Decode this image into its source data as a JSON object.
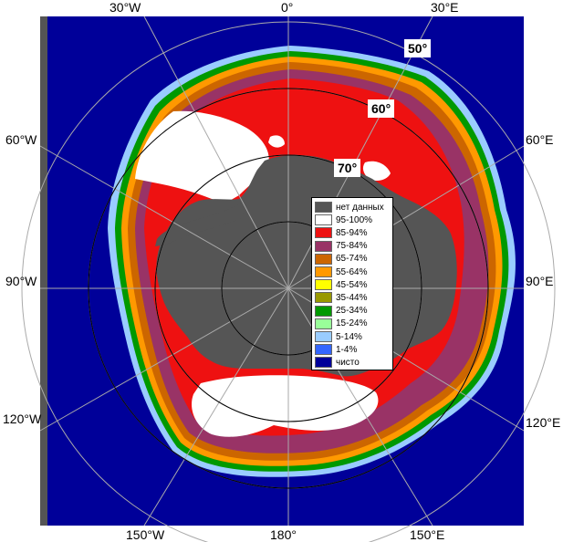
{
  "map": {
    "top_labels": [
      "30°W",
      "0°",
      "30°E"
    ],
    "left_labels": [
      "60°W",
      "90°W",
      "120°W"
    ],
    "right_labels": [
      "60°E",
      "90°E",
      "120°E"
    ],
    "bottom_labels": [
      "150°W",
      "180°",
      "150°E"
    ],
    "lat_labels": [
      "50°",
      "60°",
      "70°"
    ]
  },
  "legend": {
    "items": [
      {
        "label": "нет данных",
        "color": "#555555"
      },
      {
        "label": "95-100%",
        "color": "#ffffff"
      },
      {
        "label": "85-94%",
        "color": "#ee1111"
      },
      {
        "label": "75-84%",
        "color": "#993366"
      },
      {
        "label": "65-74%",
        "color": "#cc6600"
      },
      {
        "label": "55-64%",
        "color": "#ff9900"
      },
      {
        "label": "45-54%",
        "color": "#ffff00"
      },
      {
        "label": "35-44%",
        "color": "#999900"
      },
      {
        "label": "25-34%",
        "color": "#009900"
      },
      {
        "label": "15-24%",
        "color": "#99ff99"
      },
      {
        "label": "5-14%",
        "color": "#99ccff"
      },
      {
        "label": "1-4%",
        "color": "#3366ff"
      },
      {
        "label": "чисто",
        "color": "#000099"
      }
    ]
  },
  "colors": {
    "ocean": "#000099",
    "land": "#555555",
    "grid": "#aaaaaa",
    "frame_side": "#555555"
  }
}
